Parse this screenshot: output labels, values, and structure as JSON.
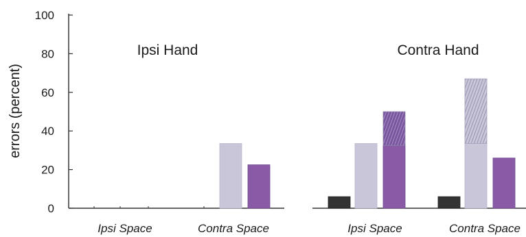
{
  "chart_data": {
    "type": "bar",
    "ylabel": "errors (percent)",
    "ylim": [
      0,
      100
    ],
    "yticks": [
      0,
      20,
      40,
      60,
      80,
      100
    ],
    "colors": {
      "dark": "#333333",
      "light": "#cac6d9",
      "purple": "#8a5aa6",
      "hatch_bg": "#c9c6d8",
      "hatch_line": "#8a87a8",
      "hatch_purple_bg": "#7a56a0",
      "hatch_purple_line": "#b8a7cf",
      "axis": "#333333"
    },
    "panels": [
      {
        "title": "Ipsi Hand",
        "categories": [
          {
            "label": "Ipsi Space",
            "bars": [
              {
                "style": "dark",
                "value": 0
              },
              {
                "style": "light",
                "value": 0
              },
              {
                "style": "purple",
                "value": 0
              }
            ]
          },
          {
            "label": "Contra Space",
            "bars": [
              {
                "style": "dark",
                "value": 0
              },
              {
                "style": "light",
                "value": 33.5
              },
              {
                "style": "purple",
                "value": 22.5
              }
            ]
          }
        ]
      },
      {
        "title": "Contra Hand",
        "categories": [
          {
            "label": "Ipsi Space",
            "bars": [
              {
                "style": "dark",
                "value": 6
              },
              {
                "style": "light",
                "value": 33.5
              },
              {
                "style": "purple",
                "value": 32.5,
                "stack": 17.5
              }
            ]
          },
          {
            "label": "Contra Space",
            "bars": [
              {
                "style": "dark",
                "value": 6
              },
              {
                "style": "light",
                "value": 33.5,
                "stack": 33.5
              },
              {
                "style": "purple",
                "value": 26
              }
            ]
          }
        ]
      }
    ]
  }
}
